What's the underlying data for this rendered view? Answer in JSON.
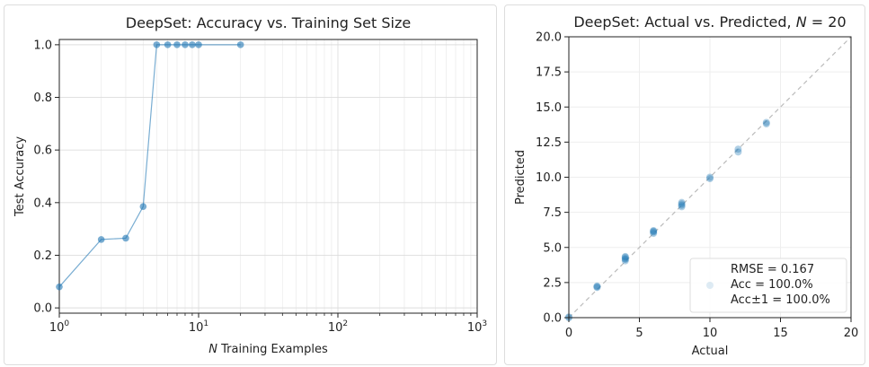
{
  "chart_data": [
    {
      "type": "line",
      "title": "DeepSet: Accuracy vs. Training Set Size",
      "xlabel_italic": "N",
      "xlabel_rest": " Training Examples",
      "ylabel": "Test Accuracy",
      "xscale": "log",
      "xlim": [
        1,
        1000
      ],
      "ylim": [
        -0.02,
        1.02
      ],
      "grid": true,
      "color": "#1f77b4",
      "x": [
        1,
        2,
        3,
        4,
        5,
        6,
        7,
        8,
        9,
        10,
        20
      ],
      "y": [
        0.08,
        0.26,
        0.265,
        0.385,
        1.0,
        1.0,
        1.0,
        1.0,
        1.0,
        1.0,
        1.0
      ],
      "xticks": [
        {
          "value": 1,
          "base": "10",
          "exp": "0"
        },
        {
          "value": 10,
          "base": "10",
          "exp": "1"
        },
        {
          "value": 100,
          "base": "10",
          "exp": "2"
        },
        {
          "value": 1000,
          "base": "10",
          "exp": "3"
        }
      ],
      "yticks": [
        0.0,
        0.2,
        0.4,
        0.6,
        0.8,
        1.0
      ],
      "ytick_labels": [
        "0.0",
        "0.2",
        "0.4",
        "0.6",
        "0.8",
        "1.0"
      ]
    },
    {
      "type": "scatter",
      "title_main": "DeepSet: Actual vs. Predicted, ",
      "title_var": "N",
      "title_eq": " = 20",
      "xlabel": "Actual",
      "ylabel": "Predicted",
      "xlim": [
        0,
        20
      ],
      "ylim": [
        0,
        20
      ],
      "grid": true,
      "color": "#1f77b4",
      "reference_line": "y = x",
      "points": [
        [
          0,
          0.0
        ],
        [
          0,
          0.05
        ],
        [
          2,
          2.15
        ],
        [
          2,
          2.25
        ],
        [
          2,
          2.2
        ],
        [
          4,
          4.05
        ],
        [
          4,
          4.2
        ],
        [
          4,
          4.3
        ],
        [
          4,
          4.35
        ],
        [
          4,
          4.15
        ],
        [
          6,
          6.0
        ],
        [
          6,
          6.1
        ],
        [
          6,
          6.2
        ],
        [
          6,
          6.15
        ],
        [
          8,
          7.9
        ],
        [
          8,
          8.0
        ],
        [
          8,
          8.1
        ],
        [
          8,
          8.2
        ],
        [
          10,
          9.9
        ],
        [
          10,
          10.0
        ],
        [
          12,
          11.8
        ],
        [
          12,
          12.0
        ],
        [
          14,
          13.8
        ],
        [
          14,
          13.9
        ]
      ],
      "xticks": [
        0,
        5,
        10,
        15,
        20
      ],
      "xtick_labels": [
        "0",
        "5",
        "10",
        "15",
        "20"
      ],
      "yticks": [
        0,
        2.5,
        5,
        7.5,
        10,
        12.5,
        15,
        17.5,
        20
      ],
      "ytick_labels": [
        "0.0",
        "2.5",
        "5.0",
        "7.5",
        "10.0",
        "12.5",
        "15.0",
        "17.5",
        "20.0"
      ],
      "legend_position": "lower-right",
      "legend": [
        "RMSE = 0.167",
        "Acc = 100.0%",
        "Acc±1 = 100.0%"
      ]
    }
  ]
}
